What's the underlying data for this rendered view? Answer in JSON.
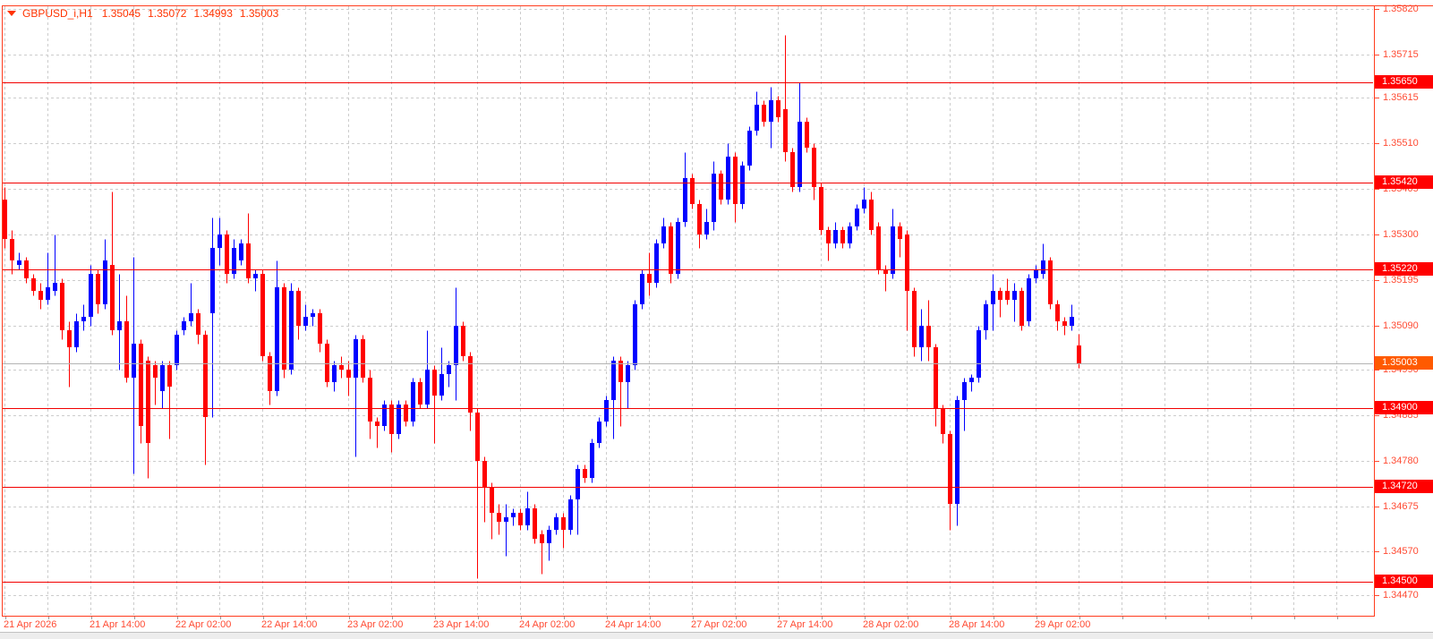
{
  "title": {
    "symbol_period": "GBPUSD_i,H1",
    "open": "1.35045",
    "high": "1.35072",
    "low": "1.34993",
    "close": "1.35003"
  },
  "colors": {
    "bull": "#0000ff",
    "bear": "#ff0000",
    "frame": "#ff3c1e",
    "title_text": "#ff3300",
    "scale_text": "#ff4b33",
    "grid": "#cccccc",
    "level_line": "#f20000",
    "level_badge": "#ff0000",
    "current_badge": "#ff5a00",
    "current_line": "#b3b3b3",
    "background": "#ffffff"
  },
  "chart_data": {
    "type": "candlestick",
    "title": "GBPUSD_i,H1",
    "symbol": "GBPUSD_i",
    "timeframe": "H1",
    "time_range": "hourly candles from 2026-04-21 02:00 to 2026-04-29 08:00, weekend 25-26 Apr excluded",
    "ohlc_order": [
      "open",
      "high",
      "low",
      "close"
    ],
    "ylim": [
      1.3447,
      1.3582
    ],
    "grid": "dashed",
    "legend_position": "none",
    "y_ticks": [
      "1.35820",
      "1.35715",
      "1.35615",
      "1.35510",
      "1.35405",
      "1.35300",
      "1.35195",
      "1.35090",
      "1.34990",
      "1.34885",
      "1.34780",
      "1.34675",
      "1.34570",
      "1.34470"
    ],
    "x_tick_labels": [
      {
        "i": 0,
        "label": "21 Apr 2026"
      },
      {
        "i": 12,
        "label": "21 Apr 14:00"
      },
      {
        "i": 24,
        "label": "22 Apr 02:00"
      },
      {
        "i": 36,
        "label": "22 Apr 14:00"
      },
      {
        "i": 48,
        "label": "23 Apr 02:00"
      },
      {
        "i": 60,
        "label": "23 Apr 14:00"
      },
      {
        "i": 72,
        "label": "24 Apr 02:00"
      },
      {
        "i": 84,
        "label": "24 Apr 14:00"
      },
      {
        "i": 96,
        "label": "27 Apr 02:00"
      },
      {
        "i": 108,
        "label": "27 Apr 14:00"
      },
      {
        "i": 120,
        "label": "28 Apr 02:00"
      },
      {
        "i": 132,
        "label": "28 Apr 14:00"
      },
      {
        "i": 144,
        "label": "29 Apr 02:00"
      }
    ],
    "horizontal_levels": [
      "1.35650",
      "1.35420",
      "1.35220",
      "1.34900",
      "1.34720",
      "1.34500"
    ],
    "current_price": "1.35003",
    "candles": [
      [
        1.3538,
        1.3541,
        1.3527,
        1.3529
      ],
      [
        1.3529,
        1.3531,
        1.3521,
        1.3524
      ],
      [
        1.3523,
        1.3526,
        1.3522,
        1.3524
      ],
      [
        1.3524,
        1.3525,
        1.3519,
        1.352
      ],
      [
        1.352,
        1.3521,
        1.3516,
        1.3517
      ],
      [
        1.3517,
        1.3519,
        1.3513,
        1.3515
      ],
      [
        1.3515,
        1.3526,
        1.3514,
        1.3518
      ],
      [
        1.3517,
        1.353,
        1.3516,
        1.3519
      ],
      [
        1.3519,
        1.352,
        1.3506,
        1.3508
      ],
      [
        1.3508,
        1.351,
        1.3495,
        1.3504
      ],
      [
        1.3504,
        1.3512,
        1.3503,
        1.351
      ],
      [
        1.351,
        1.3514,
        1.3508,
        1.3511
      ],
      [
        1.3511,
        1.3523,
        1.3509,
        1.3521
      ],
      [
        1.3521,
        1.3522,
        1.3512,
        1.3514
      ],
      [
        1.3514,
        1.3529,
        1.3513,
        1.3524
      ],
      [
        1.3523,
        1.354,
        1.3507,
        1.3508
      ],
      [
        1.3508,
        1.3521,
        1.3499,
        1.351
      ],
      [
        1.351,
        1.3516,
        1.3496,
        1.3497
      ],
      [
        1.3497,
        1.3525,
        1.3475,
        1.3505
      ],
      [
        1.3505,
        1.3506,
        1.3482,
        1.3486
      ],
      [
        1.3501,
        1.3502,
        1.3474,
        1.3482
      ],
      [
        1.35,
        1.3501,
        1.3491,
        1.3497
      ],
      [
        1.3494,
        1.3501,
        1.349,
        1.35
      ],
      [
        1.35,
        1.3501,
        1.3483,
        1.3495
      ],
      [
        1.35,
        1.3508,
        1.3499,
        1.3507
      ],
      [
        1.3508,
        1.3511,
        1.3507,
        1.351
      ],
      [
        1.351,
        1.3519,
        1.3509,
        1.3512
      ],
      [
        1.3512,
        1.3513,
        1.3505,
        1.3507
      ],
      [
        1.3507,
        1.3508,
        1.3477,
        1.3488
      ],
      [
        1.3512,
        1.3534,
        1.3488,
        1.3527
      ],
      [
        1.3527,
        1.3534,
        1.3523,
        1.353
      ],
      [
        1.353,
        1.3531,
        1.3519,
        1.3521
      ],
      [
        1.3521,
        1.3529,
        1.352,
        1.3527
      ],
      [
        1.3524,
        1.3529,
        1.3523,
        1.3528
      ],
      [
        1.3528,
        1.3535,
        1.3519,
        1.352
      ],
      [
        1.352,
        1.3522,
        1.3517,
        1.3521
      ],
      [
        1.3521,
        1.3522,
        1.3501,
        1.3502
      ],
      [
        1.3502,
        1.3503,
        1.3491,
        1.3494
      ],
      [
        1.3494,
        1.3524,
        1.3493,
        1.3518
      ],
      [
        1.3518,
        1.3519,
        1.3497,
        1.3499
      ],
      [
        1.3499,
        1.3519,
        1.3498,
        1.3517
      ],
      [
        1.3517,
        1.3518,
        1.3506,
        1.3509
      ],
      [
        1.3509,
        1.3514,
        1.3508,
        1.3511
      ],
      [
        1.3511,
        1.3513,
        1.3509,
        1.3512
      ],
      [
        1.3512,
        1.3513,
        1.3503,
        1.3505
      ],
      [
        1.3505,
        1.3506,
        1.3495,
        1.3496
      ],
      [
        1.3496,
        1.3501,
        1.3494,
        1.35
      ],
      [
        1.35,
        1.3502,
        1.3497,
        1.3499
      ],
      [
        1.3499,
        1.3501,
        1.3493,
        1.3497
      ],
      [
        1.3497,
        1.3507,
        1.3479,
        1.3506
      ],
      [
        1.3506,
        1.3507,
        1.3496,
        1.3497
      ],
      [
        1.3497,
        1.3499,
        1.3483,
        1.3487
      ],
      [
        1.3487,
        1.3488,
        1.3481,
        1.3486
      ],
      [
        1.3486,
        1.3492,
        1.3485,
        1.3491
      ],
      [
        1.3491,
        1.3492,
        1.348,
        1.3484
      ],
      [
        1.3484,
        1.3492,
        1.3483,
        1.3491
      ],
      [
        1.3491,
        1.3492,
        1.3486,
        1.3487
      ],
      [
        1.3487,
        1.3497,
        1.3486,
        1.3496
      ],
      [
        1.3496,
        1.3497,
        1.349,
        1.3491
      ],
      [
        1.3491,
        1.3508,
        1.349,
        1.3499
      ],
      [
        1.3499,
        1.35,
        1.3482,
        1.3493
      ],
      [
        1.3493,
        1.3504,
        1.3492,
        1.3498
      ],
      [
        1.3498,
        1.3501,
        1.3495,
        1.35
      ],
      [
        1.35,
        1.3518,
        1.3492,
        1.3509
      ],
      [
        1.3509,
        1.351,
        1.3501,
        1.3502
      ],
      [
        1.3502,
        1.3503,
        1.3485,
        1.3489
      ],
      [
        1.3489,
        1.349,
        1.3451,
        1.3478
      ],
      [
        1.3478,
        1.3479,
        1.3464,
        1.3472
      ],
      [
        1.3472,
        1.3473,
        1.346,
        1.3466
      ],
      [
        1.3466,
        1.3468,
        1.3461,
        1.3464
      ],
      [
        1.3464,
        1.3468,
        1.3456,
        1.3465
      ],
      [
        1.3465,
        1.3467,
        1.3463,
        1.3466
      ],
      [
        1.3466,
        1.3467,
        1.3462,
        1.3463
      ],
      [
        1.3463,
        1.3471,
        1.3462,
        1.3467
      ],
      [
        1.3467,
        1.3468,
        1.3459,
        1.346
      ],
      [
        1.3461,
        1.3462,
        1.3452,
        1.3459
      ],
      [
        1.3459,
        1.3463,
        1.3455,
        1.3462
      ],
      [
        1.3462,
        1.3466,
        1.3461,
        1.3465
      ],
      [
        1.3465,
        1.3466,
        1.3458,
        1.3462
      ],
      [
        1.3462,
        1.347,
        1.3461,
        1.3469
      ],
      [
        1.3469,
        1.3477,
        1.3461,
        1.3476
      ],
      [
        1.3476,
        1.3477,
        1.3473,
        1.3474
      ],
      [
        1.3474,
        1.3483,
        1.3473,
        1.3482
      ],
      [
        1.3482,
        1.3488,
        1.3481,
        1.3487
      ],
      [
        1.3487,
        1.3493,
        1.3486,
        1.3492
      ],
      [
        1.3492,
        1.3502,
        1.3483,
        1.3501
      ],
      [
        1.3501,
        1.3502,
        1.3486,
        1.3496
      ],
      [
        1.3496,
        1.3501,
        1.349,
        1.35
      ],
      [
        1.35,
        1.3515,
        1.3499,
        1.3514
      ],
      [
        1.3514,
        1.3522,
        1.3513,
        1.3521
      ],
      [
        1.3521,
        1.3526,
        1.3516,
        1.3519
      ],
      [
        1.3519,
        1.3529,
        1.3518,
        1.3528
      ],
      [
        1.3528,
        1.3534,
        1.3527,
        1.3532
      ],
      [
        1.3532,
        1.3533,
        1.3519,
        1.3521
      ],
      [
        1.3521,
        1.3534,
        1.352,
        1.3533
      ],
      [
        1.3533,
        1.3549,
        1.3532,
        1.3543
      ],
      [
        1.3543,
        1.3544,
        1.3536,
        1.3537
      ],
      [
        1.3537,
        1.3538,
        1.3527,
        1.353
      ],
      [
        1.353,
        1.3536,
        1.3529,
        1.3533
      ],
      [
        1.3533,
        1.3547,
        1.3531,
        1.3544
      ],
      [
        1.3544,
        1.3545,
        1.3537,
        1.3538
      ],
      [
        1.3538,
        1.3551,
        1.3537,
        1.3548
      ],
      [
        1.3548,
        1.3549,
        1.3533,
        1.3537
      ],
      [
        1.3537,
        1.3547,
        1.3536,
        1.3546
      ],
      [
        1.3546,
        1.3555,
        1.3545,
        1.3554
      ],
      [
        1.3554,
        1.3563,
        1.3553,
        1.356
      ],
      [
        1.356,
        1.3561,
        1.3555,
        1.3556
      ],
      [
        1.3556,
        1.3564,
        1.355,
        1.3561
      ],
      [
        1.3561,
        1.3562,
        1.3556,
        1.3557
      ],
      [
        1.3559,
        1.3576,
        1.3547,
        1.3549
      ],
      [
        1.3549,
        1.355,
        1.354,
        1.3541
      ],
      [
        1.3541,
        1.3565,
        1.354,
        1.3556
      ],
      [
        1.3556,
        1.3557,
        1.3549,
        1.355
      ],
      [
        1.355,
        1.3551,
        1.3538,
        1.3541
      ],
      [
        1.3541,
        1.3542,
        1.353,
        1.3531
      ],
      [
        1.3531,
        1.3532,
        1.3524,
        1.3528
      ],
      [
        1.3528,
        1.3533,
        1.3527,
        1.3531
      ],
      [
        1.3531,
        1.3532,
        1.3527,
        1.3528
      ],
      [
        1.3528,
        1.3533,
        1.3527,
        1.3532
      ],
      [
        1.3532,
        1.3537,
        1.3531,
        1.3536
      ],
      [
        1.3536,
        1.3541,
        1.3535,
        1.3538
      ],
      [
        1.3538,
        1.354,
        1.353,
        1.3531
      ],
      [
        1.3532,
        1.3533,
        1.3521,
        1.3522
      ],
      [
        1.3522,
        1.3523,
        1.3517,
        1.3521
      ],
      [
        1.3521,
        1.3536,
        1.352,
        1.3532
      ],
      [
        1.3532,
        1.3533,
        1.3525,
        1.3529
      ],
      [
        1.353,
        1.3531,
        1.3508,
        1.3517
      ],
      [
        1.3517,
        1.3518,
        1.3502,
        1.3504
      ],
      [
        1.3504,
        1.3513,
        1.3501,
        1.3509
      ],
      [
        1.3509,
        1.3515,
        1.3501,
        1.3504
      ],
      [
        1.3504,
        1.3505,
        1.3486,
        1.349
      ],
      [
        1.349,
        1.3491,
        1.3482,
        1.3484
      ],
      [
        1.3484,
        1.3485,
        1.3462,
        1.3468
      ],
      [
        1.3468,
        1.3493,
        1.3463,
        1.3492
      ],
      [
        1.3492,
        1.3497,
        1.3485,
        1.3496
      ],
      [
        1.3496,
        1.3498,
        1.3494,
        1.3497
      ],
      [
        1.3497,
        1.3509,
        1.3496,
        1.3508
      ],
      [
        1.3508,
        1.3515,
        1.3506,
        1.3514
      ],
      [
        1.3514,
        1.3521,
        1.3508,
        1.3517
      ],
      [
        1.3517,
        1.3518,
        1.3511,
        1.3515
      ],
      [
        1.3517,
        1.352,
        1.3514,
        1.3515
      ],
      [
        1.3515,
        1.3519,
        1.351,
        1.3517
      ],
      [
        1.3517,
        1.3518,
        1.3508,
        1.3509
      ],
      [
        1.351,
        1.3521,
        1.3509,
        1.352
      ],
      [
        1.352,
        1.3523,
        1.3519,
        1.3522
      ],
      [
        1.3521,
        1.3528,
        1.352,
        1.3524
      ],
      [
        1.3524,
        1.3525,
        1.3513,
        1.3514
      ],
      [
        1.3514,
        1.3515,
        1.3508,
        1.351
      ],
      [
        1.351,
        1.3511,
        1.3507,
        1.3509
      ],
      [
        1.3509,
        1.3514,
        1.3508,
        1.3511
      ],
      [
        1.35045,
        1.35072,
        1.34993,
        1.35003
      ]
    ]
  }
}
